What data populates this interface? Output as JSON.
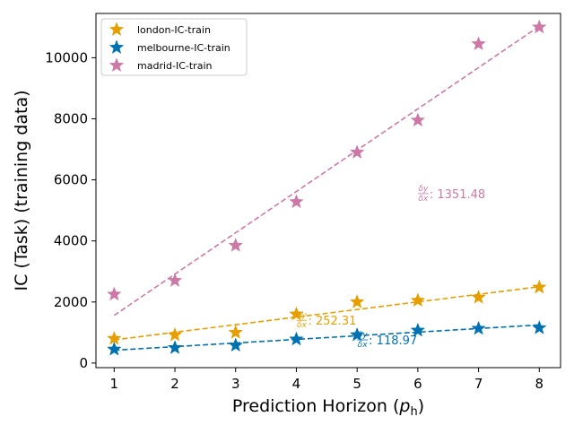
{
  "chart_data": {
    "type": "scatter",
    "xlabel": "Prediction Horizon (",
    "xlabel_sym": "p",
    "xlabel_sub": "h",
    "xlabel_end": ")",
    "ylabel": "IC (Task) (training data)",
    "xlim": [
      0.7,
      8.35
    ],
    "ylim": [
      -150,
      11450
    ],
    "xticks": [
      1,
      2,
      3,
      4,
      5,
      6,
      7,
      8
    ],
    "yticks": [
      0,
      2000,
      4000,
      6000,
      8000,
      10000
    ],
    "legend_position": "upper-left",
    "slope_label": {
      "num": "δy",
      "den": "δx"
    },
    "series": [
      {
        "name": "london-IC-train",
        "color": "#E69F00",
        "x": [
          1,
          2,
          3,
          4,
          5,
          6,
          7,
          8
        ],
        "y": [
          800,
          920,
          1000,
          1600,
          2000,
          2050,
          2150,
          2480
        ],
        "fit": {
          "y_start": 760,
          "y_end": 2500
        },
        "slope": ": 252.31",
        "slope_at": [
          4,
          1400
        ]
      },
      {
        "name": "melbourne-IC-train",
        "color": "#0072B2",
        "x": [
          1,
          2,
          3,
          4,
          5,
          6,
          7,
          8
        ],
        "y": [
          450,
          500,
          580,
          780,
          920,
          1070,
          1130,
          1150
        ],
        "fit": {
          "y_start": 420,
          "y_end": 1250
        },
        "slope": ": 118.97",
        "slope_at": [
          5,
          760
        ]
      },
      {
        "name": "madrid-IC-train",
        "color": "#CC79A7",
        "x": [
          1,
          2,
          3,
          4,
          5,
          6,
          7,
          8
        ],
        "y": [
          2250,
          2700,
          3850,
          5280,
          6900,
          7950,
          10450,
          11000
        ],
        "fit": {
          "y_start": 1560,
          "y_end": 11030
        },
        "slope": ": 1351.48",
        "slope_at": [
          6,
          5550
        ]
      }
    ]
  }
}
